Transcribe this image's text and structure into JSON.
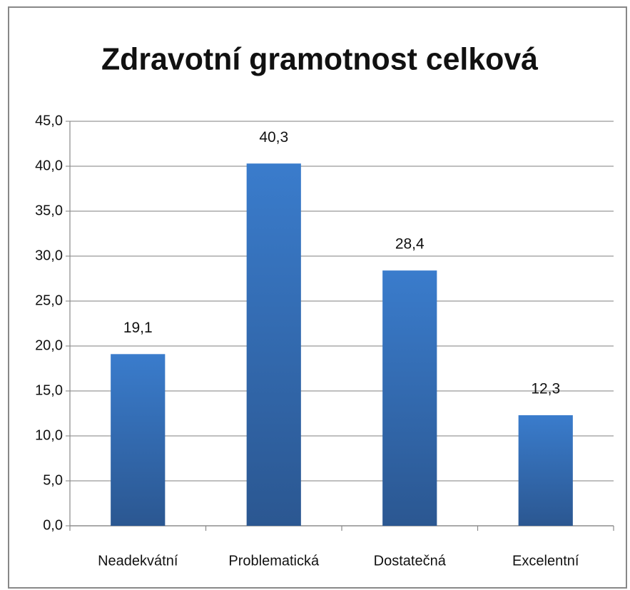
{
  "chart_data": {
    "type": "bar",
    "title": "Zdravotní gramotnost celková",
    "categories": [
      "Neadekvátní",
      "Problematická",
      "Dostatečná",
      "Excelentní"
    ],
    "values": [
      19.1,
      40.3,
      28.4,
      12.3
    ],
    "value_labels": [
      "19,1",
      "40,3",
      "28,4",
      "12,3"
    ],
    "color": "#3a7ccc",
    "ylim": [
      0,
      45
    ],
    "yticks": [
      {
        "value": 0,
        "label": "0,0"
      },
      {
        "value": 5,
        "label": "5,0"
      },
      {
        "value": 10,
        "label": "10,0"
      },
      {
        "value": 15,
        "label": "15,0"
      },
      {
        "value": 20,
        "label": "20,0"
      },
      {
        "value": 25,
        "label": "25,0"
      },
      {
        "value": 30,
        "label": "30,0"
      },
      {
        "value": 35,
        "label": "35,0"
      },
      {
        "value": 40,
        "label": "40,0"
      },
      {
        "value": 45,
        "label": "45,0"
      }
    ],
    "grid": true
  }
}
